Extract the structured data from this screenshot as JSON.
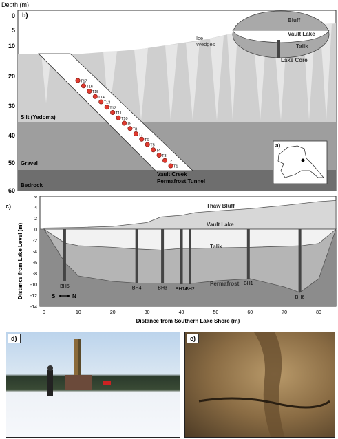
{
  "panel_b": {
    "label": "b)",
    "depth_axis_title": "Depth (m)",
    "depth_ticks": [
      "0",
      "5",
      "10",
      "20",
      "30",
      "40",
      "50",
      "60"
    ],
    "layers": {
      "silt": "Silt (Yedoma)",
      "gravel": "Gravel",
      "bedrock": "Bedrock"
    },
    "features": {
      "ice_wedges": "Ice\nWedges",
      "bluff": "Bluff",
      "lake": "Vault Lake",
      "talik": "Talik",
      "lake_core": "Lake Core",
      "tunnel": "Vault Creek\nPermafrost Tunnel"
    },
    "samples": [
      "T1",
      "T2",
      "T3",
      "T4",
      "T5",
      "T6",
      "T7",
      "T8",
      "T9",
      "T10",
      "T11",
      "T12",
      "T13",
      "T14",
      "T15",
      "T16",
      "T17"
    ]
  },
  "inset": {
    "label": "a)"
  },
  "panel_c": {
    "label": "c)",
    "y_axis_title": "Distance from Lake Level (m)",
    "x_axis_title": "Distance from Southern Lake Shore (m)",
    "x_ticks": [
      "0",
      "10",
      "20",
      "30",
      "40",
      "50",
      "60",
      "70",
      "80"
    ],
    "y_ticks": [
      "6",
      "4",
      "2",
      "0",
      "-2",
      "-4",
      "-6",
      "-8",
      "-10",
      "-12",
      "-14"
    ],
    "features": {
      "thaw_bluff": "Thaw Bluff",
      "lake": "Vault Lake",
      "talik": "Talik",
      "permafrost": "Permafrost"
    },
    "compass": {
      "south": "S",
      "north": "N"
    },
    "boreholes": [
      {
        "name": "BH5",
        "x": 6
      },
      {
        "name": "BH4",
        "x": 27
      },
      {
        "name": "BH3",
        "x": 34.5
      },
      {
        "name": "BH14",
        "x": 40
      },
      {
        "name": "BH2",
        "x": 42.5
      },
      {
        "name": "BH1",
        "x": 59.5
      },
      {
        "name": "BH6",
        "x": 74.5
      }
    ]
  },
  "photos": {
    "d": "d)",
    "e": "e)"
  },
  "chart_data": {
    "type": "area",
    "title": "",
    "xlabel": "Distance from Southern Lake Shore (m)",
    "ylabel": "Distance from Lake Level (m)",
    "xlim": [
      0,
      85
    ],
    "ylim": [
      -14,
      6
    ],
    "series": [
      {
        "name": "Thaw Bluff",
        "x": [
          0,
          10,
          20,
          30,
          34,
          40,
          44,
          50,
          60,
          70,
          80,
          85
        ],
        "y": [
          0.2,
          0.3,
          0.5,
          1.2,
          2.2,
          2.5,
          3.0,
          3.3,
          3.7,
          4.3,
          5.0,
          5.2
        ]
      },
      {
        "name": "Vault Lake",
        "x": [
          0,
          6,
          10,
          20,
          27,
          34,
          40,
          44,
          50,
          60,
          70,
          75,
          80,
          85
        ],
        "y": [
          0,
          -2.5,
          -3.0,
          -3.3,
          -3.6,
          -3.8,
          -3.5,
          -3.5,
          -3.4,
          -3.3,
          -3.1,
          -3.0,
          -2.6,
          0
        ]
      },
      {
        "name": "Talik",
        "x": [
          0,
          6,
          10,
          20,
          27,
          34,
          40,
          44,
          50,
          60,
          70,
          74.5,
          80,
          85
        ],
        "y": [
          0,
          -6,
          -8.5,
          -9.5,
          -9.8,
          -9.8,
          -9.8,
          -9.8,
          -9.4,
          -9.0,
          -10.5,
          -11.5,
          -9,
          0
        ]
      }
    ],
    "boreholes": [
      {
        "name": "BH5",
        "x": 6,
        "bottom": -9.5
      },
      {
        "name": "BH4",
        "x": 27,
        "bottom": -9.8
      },
      {
        "name": "BH3",
        "x": 34.5,
        "bottom": -9.8
      },
      {
        "name": "BH14",
        "x": 40,
        "bottom": -10
      },
      {
        "name": "BH2",
        "x": 42.5,
        "bottom": -10
      },
      {
        "name": "BH1",
        "x": 59.5,
        "bottom": -9
      },
      {
        "name": "BH6",
        "x": 74.5,
        "bottom": -11.5
      }
    ]
  }
}
